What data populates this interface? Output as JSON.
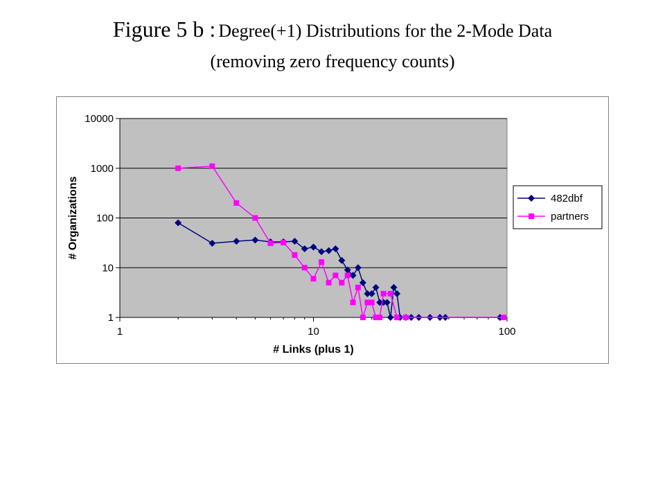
{
  "title": {
    "lead": "Figure  5 b :",
    "rest": "Degree(+1) Distributions for the 2-Mode Data",
    "line2": "(removing zero frequency counts)"
  },
  "colors": {
    "plot_bg": "#c0c0c0",
    "series_482dbf": "#000080",
    "series_partners": "#ff00ff"
  },
  "chart_data": {
    "type": "line",
    "xscale": "log",
    "yscale": "log",
    "xlim": [
      1,
      100
    ],
    "ylim": [
      1,
      10000
    ],
    "xticks": [
      1,
      10,
      100
    ],
    "yticks": [
      1,
      10,
      100,
      1000,
      10000
    ],
    "xtick_labels": [
      "1",
      "10",
      "100"
    ],
    "ytick_labels": [
      "1",
      "10",
      "100",
      "1000",
      "10000"
    ],
    "xlabel": "# Links (plus 1)",
    "ylabel": "# Organizations",
    "grid": "horizontal",
    "legend": "right",
    "series": [
      {
        "name": "482dbf",
        "marker": "diamond",
        "x": [
          2,
          3,
          4,
          5,
          6,
          7,
          8,
          9,
          10,
          11,
          12,
          13,
          14,
          15,
          16,
          17,
          18,
          19,
          20,
          21,
          22,
          23,
          24,
          25,
          26,
          27,
          28,
          30,
          32,
          35,
          40,
          45,
          48,
          92
        ],
        "y": [
          80,
          31,
          34,
          36,
          33,
          33,
          34,
          24,
          26,
          21,
          22,
          24,
          14,
          9,
          7,
          10,
          5,
          3,
          3,
          4,
          2,
          2,
          2,
          1,
          4,
          3,
          1,
          1,
          1,
          1,
          1,
          1,
          1,
          1
        ]
      },
      {
        "name": "partners",
        "marker": "square",
        "x": [
          2,
          3,
          4,
          5,
          6,
          7,
          8,
          9,
          10,
          11,
          12,
          13,
          14,
          15,
          16,
          17,
          18,
          19,
          20,
          21,
          22,
          23,
          25,
          27,
          30,
          96
        ],
        "y": [
          1000,
          1100,
          200,
          100,
          31,
          32,
          18,
          10,
          6,
          13,
          5,
          7,
          5,
          7,
          2,
          4,
          1,
          2,
          2,
          1,
          1,
          3,
          3,
          1,
          1,
          1
        ]
      }
    ]
  }
}
